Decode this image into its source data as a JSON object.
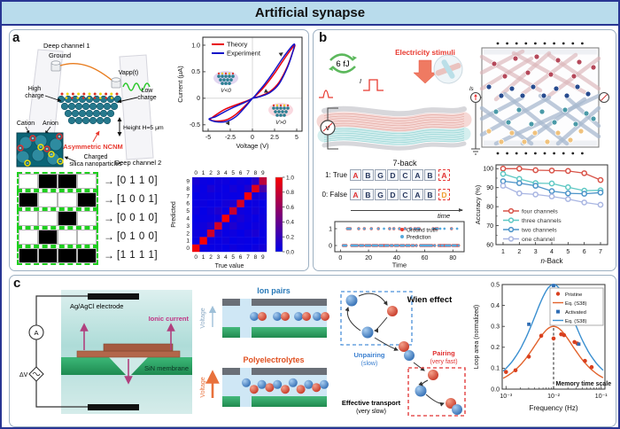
{
  "title": "Artificial synapse",
  "colors": {
    "banner_bg": "#b9dcec",
    "frame_border": "#283593",
    "panel_border": "#9db0c2",
    "pattern_green": "#1ecf1e",
    "theory_red": "#e8000d",
    "experiment_blue": "#1414c8"
  },
  "panel_a": {
    "label": "a",
    "arrow_glyph": "→",
    "schematic": {
      "deep_channel_1": "Deep channel 1",
      "ground": "Ground",
      "vapp": "Vapp(t)",
      "high_charge_1": "High",
      "high_charge_2": "charge",
      "low_charge_1": "Low",
      "low_charge_2": "charge",
      "cation": "Cation",
      "anion": "Anion",
      "asymmetric_ncnm": "Asymmetric NCNM",
      "height": "Height H=5 μm",
      "deep_channel_2": "Deep channel 2",
      "silica_1": "Charged",
      "silica_2": "silica nanoparticles"
    },
    "patterns": [
      {
        "cells": [
          0,
          1,
          1,
          0
        ],
        "vector": "[0 1 1 0]"
      },
      {
        "cells": [
          1,
          0,
          0,
          1
        ],
        "vector": "[1 0 0 1]"
      },
      {
        "cells": [
          0,
          0,
          1,
          0
        ],
        "vector": "[0 0 1 0]"
      },
      {
        "cells": [
          0,
          1,
          0,
          0
        ],
        "vector": "[0 1 0 0]"
      },
      {
        "cells": [
          1,
          1,
          1,
          1
        ],
        "vector": "[1 1 1 1]"
      }
    ]
  },
  "panel_b": {
    "label": "b",
    "energy": "6 fJ",
    "stimuli": "Electricity stimuli",
    "pulse_label": "I",
    "voltmeter_label": "V",
    "source_label": "Is",
    "nback": {
      "title": "7-back",
      "true_label": "1: True",
      "false_label": "0: False",
      "sequence": [
        "A",
        "B",
        "G",
        "D",
        "C",
        "A",
        "B"
      ],
      "true_last": "A",
      "false_last": "D",
      "time_label": "time"
    }
  },
  "panel_c": {
    "label": "c",
    "electrode": "Ag/AgCl electrode",
    "ionic_current": "Ionic current",
    "membrane": "SiN membrane",
    "ammeter": "A",
    "voltage_source": "ΔV",
    "ion_pairs_title": "Ion pairs",
    "polyelectrolytes_title": "Polyelectrolytes",
    "voltage_label": "Voltage",
    "wien_title": "Wien effect",
    "unpairing": "Unpairing",
    "unpairing_sub": "(slow)",
    "pairing": "Pairing",
    "pairing_sub": "(very fast)",
    "transport": "Effective transport",
    "transport_sub": "(very slow)"
  },
  "chart_data": [
    {
      "id": "iv_hysteresis",
      "type": "line",
      "xlabel": "Voltage (V)",
      "ylabel": "Current (μA)",
      "xlim": [
        -5.6,
        5.6
      ],
      "ylim": [
        -0.62,
        1.15
      ],
      "xticks": [
        -5,
        -2.5,
        0,
        2.5,
        5
      ],
      "xtick_labels": [
        "-5",
        "-2.5",
        "0",
        "2.5",
        "5"
      ],
      "yticks": [
        -0.5,
        0,
        0.5,
        1.0
      ],
      "ytick_labels": [
        "-0.5",
        "0",
        "0.5",
        "1.0"
      ],
      "legend_position": "top-left",
      "grid": false,
      "annotations": [
        {
          "text": "V<0",
          "x": -3.0,
          "y": 0.33,
          "halo": "#c9b4e4"
        },
        {
          "text": "V>0",
          "x": 3.2,
          "y": -0.27,
          "halo": "#f4b9c6"
        }
      ],
      "series": [
        {
          "name": "Theory",
          "color": "#e8000d",
          "points": [
            [
              0,
              0
            ],
            [
              1,
              0.05
            ],
            [
              2,
              0.13
            ],
            [
              3,
              0.3
            ],
            [
              3.9,
              0.58
            ],
            [
              4.5,
              0.85
            ],
            [
              4.8,
              1.0
            ],
            [
              4.4,
              0.93
            ],
            [
              3.5,
              0.72
            ],
            [
              2.5,
              0.47
            ],
            [
              1.5,
              0.25
            ],
            [
              0.7,
              0.1
            ],
            [
              0,
              0
            ],
            [
              -0.8,
              -0.06
            ],
            [
              -1.8,
              -0.12
            ],
            [
              -3,
              -0.2
            ],
            [
              -4,
              -0.3
            ],
            [
              -4.75,
              -0.4
            ],
            [
              -4.1,
              -0.43
            ],
            [
              -3,
              -0.41
            ],
            [
              -2,
              -0.32
            ],
            [
              -1,
              -0.17
            ],
            [
              0,
              0
            ]
          ]
        },
        {
          "name": "Experiment",
          "color": "#1414c8",
          "points": [
            [
              0,
              0
            ],
            [
              1,
              0.04
            ],
            [
              2,
              0.11
            ],
            [
              3,
              0.27
            ],
            [
              4,
              0.6
            ],
            [
              4.6,
              0.9
            ],
            [
              4.75,
              1.02
            ],
            [
              4.3,
              0.95
            ],
            [
              3.4,
              0.75
            ],
            [
              2.4,
              0.5
            ],
            [
              1.4,
              0.27
            ],
            [
              0.6,
              0.11
            ],
            [
              0,
              0
            ],
            [
              -0.9,
              -0.08
            ],
            [
              -2,
              -0.16
            ],
            [
              -3.2,
              -0.26
            ],
            [
              -4.2,
              -0.35
            ],
            [
              -4.9,
              -0.39
            ],
            [
              -4.2,
              -0.44
            ],
            [
              -3,
              -0.44
            ],
            [
              -1.9,
              -0.35
            ],
            [
              -0.9,
              -0.18
            ],
            [
              0,
              0
            ]
          ]
        }
      ]
    },
    {
      "id": "confusion_matrix",
      "type": "heatmap",
      "xlabel": "True value",
      "ylabel": "Predicted",
      "categories": [
        "0",
        "1",
        "2",
        "3",
        "4",
        "5",
        "6",
        "7",
        "8",
        "9"
      ],
      "colorbar_ticks": [
        "1.0",
        "0.8",
        "0.6",
        "0.4",
        "0.2",
        "0.0"
      ],
      "matrix_rows_predicted_0_to_9": true,
      "matrix": [
        [
          0.97,
          0.05,
          0.03,
          0.04,
          0.02,
          0.06,
          0.03,
          0.02,
          0.05,
          0.08
        ],
        [
          0.04,
          1.0,
          0.05,
          0.03,
          0.06,
          0.02,
          0.04,
          0.03,
          0.02,
          0.04
        ],
        [
          0.06,
          0.04,
          0.82,
          0.1,
          0.03,
          0.05,
          0.02,
          0.06,
          0.1,
          0.03
        ],
        [
          0.03,
          0.06,
          0.12,
          0.85,
          0.04,
          0.12,
          0.05,
          0.03,
          0.06,
          0.05
        ],
        [
          0.02,
          0.03,
          0.04,
          0.05,
          1.0,
          0.04,
          0.1,
          0.05,
          0.03,
          0.06
        ],
        [
          0.05,
          0.02,
          0.06,
          0.12,
          0.03,
          0.8,
          0.06,
          0.04,
          0.08,
          0.04
        ],
        [
          0.04,
          0.05,
          0.03,
          0.04,
          0.08,
          0.1,
          0.85,
          0.03,
          0.05,
          0.02
        ],
        [
          0.02,
          0.04,
          0.05,
          0.03,
          0.04,
          0.03,
          0.04,
          1.0,
          0.08,
          0.1
        ],
        [
          0.05,
          0.03,
          0.1,
          0.05,
          0.03,
          0.08,
          0.04,
          0.12,
          0.9,
          0.3
        ],
        [
          0.09,
          0.04,
          0.03,
          0.06,
          0.05,
          0.03,
          0.06,
          0.04,
          0.15,
          0.75
        ]
      ]
    },
    {
      "id": "nback_timeline",
      "type": "scatter",
      "xlabel": "Time",
      "xlim": [
        -4,
        88
      ],
      "xticks": [
        0,
        20,
        40,
        60,
        80
      ],
      "yticks": [
        0,
        1
      ],
      "series": [
        {
          "name": "Ground truth",
          "color": "#e8392f",
          "ones_x": [
            5,
            6,
            7,
            13,
            17,
            22,
            27,
            35,
            38,
            42,
            46,
            50,
            53,
            55,
            56,
            66,
            68,
            69,
            79
          ],
          "zeros_range": [
            2,
            84
          ]
        },
        {
          "name": "Prediction",
          "color": "#56a8dc",
          "ones_x": [
            5,
            6,
            7,
            13,
            17,
            22,
            27,
            31,
            35,
            38,
            42,
            46,
            50,
            53,
            55,
            56,
            66,
            68,
            69,
            71,
            74,
            79,
            83
          ],
          "zeros_range": [
            2,
            84
          ]
        }
      ]
    },
    {
      "id": "nback_accuracy",
      "type": "line",
      "xlabel": "n-Back",
      "ylabel": "Accuracy (%)",
      "xticks": [
        1,
        2,
        3,
        4,
        5,
        6,
        7
      ],
      "ylim": [
        60,
        102
      ],
      "yticks": [
        60,
        70,
        80,
        90,
        100
      ],
      "legend_position": "bottom-left",
      "series": [
        {
          "name": "four channels",
          "color": "#d85348",
          "values": [
            100,
            100,
            99.2,
            99,
            98.8,
            97.6,
            94
          ]
        },
        {
          "name": "three channels",
          "color": "#5ec8c4",
          "values": [
            97.2,
            94.6,
            92.4,
            92.2,
            90.2,
            88.4,
            88.6
          ]
        },
        {
          "name": "two channels",
          "color": "#4b93c8",
          "values": [
            93.4,
            92.4,
            91,
            88.2,
            87,
            86.8,
            87.4
          ]
        },
        {
          "name": "one channel",
          "color": "#a9b6e2",
          "values": [
            91,
            87,
            86.4,
            85.4,
            84,
            82.2,
            81
          ]
        }
      ]
    },
    {
      "id": "loop_area_frequency",
      "type": "scatter",
      "xlabel": "Frequency (Hz)",
      "ylabel": "Loop area (normalized)",
      "x_scale": "log",
      "xlim_log": [
        -3.08,
        -0.92
      ],
      "xticks_log": [
        -3,
        -2,
        -1
      ],
      "xtick_labels": [
        "10⁻³",
        "10⁻²",
        "10⁻¹"
      ],
      "ylim": [
        0,
        0.5
      ],
      "yticks": [
        "0.0",
        "0.1",
        "0.2",
        "0.3",
        "0.4",
        "0.5"
      ],
      "annotation": {
        "text": "Memory time scale",
        "x_log": -2
      },
      "series": [
        {
          "name": "Pristine",
          "marker": "circle",
          "color": "#d9401f",
          "points": [
            [
              -3.0,
              0.082
            ],
            [
              -2.8,
              0.09
            ],
            [
              -2.52,
              0.155
            ],
            [
              -2.26,
              0.255
            ],
            [
              -2.0,
              0.242
            ],
            [
              -1.84,
              0.262
            ],
            [
              -1.78,
              0.258
            ],
            [
              -1.56,
              0.225
            ],
            [
              -1.5,
              0.218
            ],
            [
              -1.34,
              0.135
            ],
            [
              -1.2,
              0.105
            ]
          ]
        },
        {
          "name": "Eq. (S38)",
          "curve": true,
          "color": "#e2622b",
          "peak": 0.3,
          "fc_log": -2
        },
        {
          "name": "Activated",
          "marker": "square",
          "color": "#2e6db4",
          "points": [
            [
              -2.52,
              0.31
            ],
            [
              -2.0,
              0.495
            ],
            [
              -1.47,
              0.215
            ]
          ]
        },
        {
          "name": "Eq. (S38)",
          "curve": true,
          "color": "#3a8fd0",
          "peak": 0.5,
          "fc_log": -2
        }
      ]
    }
  ]
}
